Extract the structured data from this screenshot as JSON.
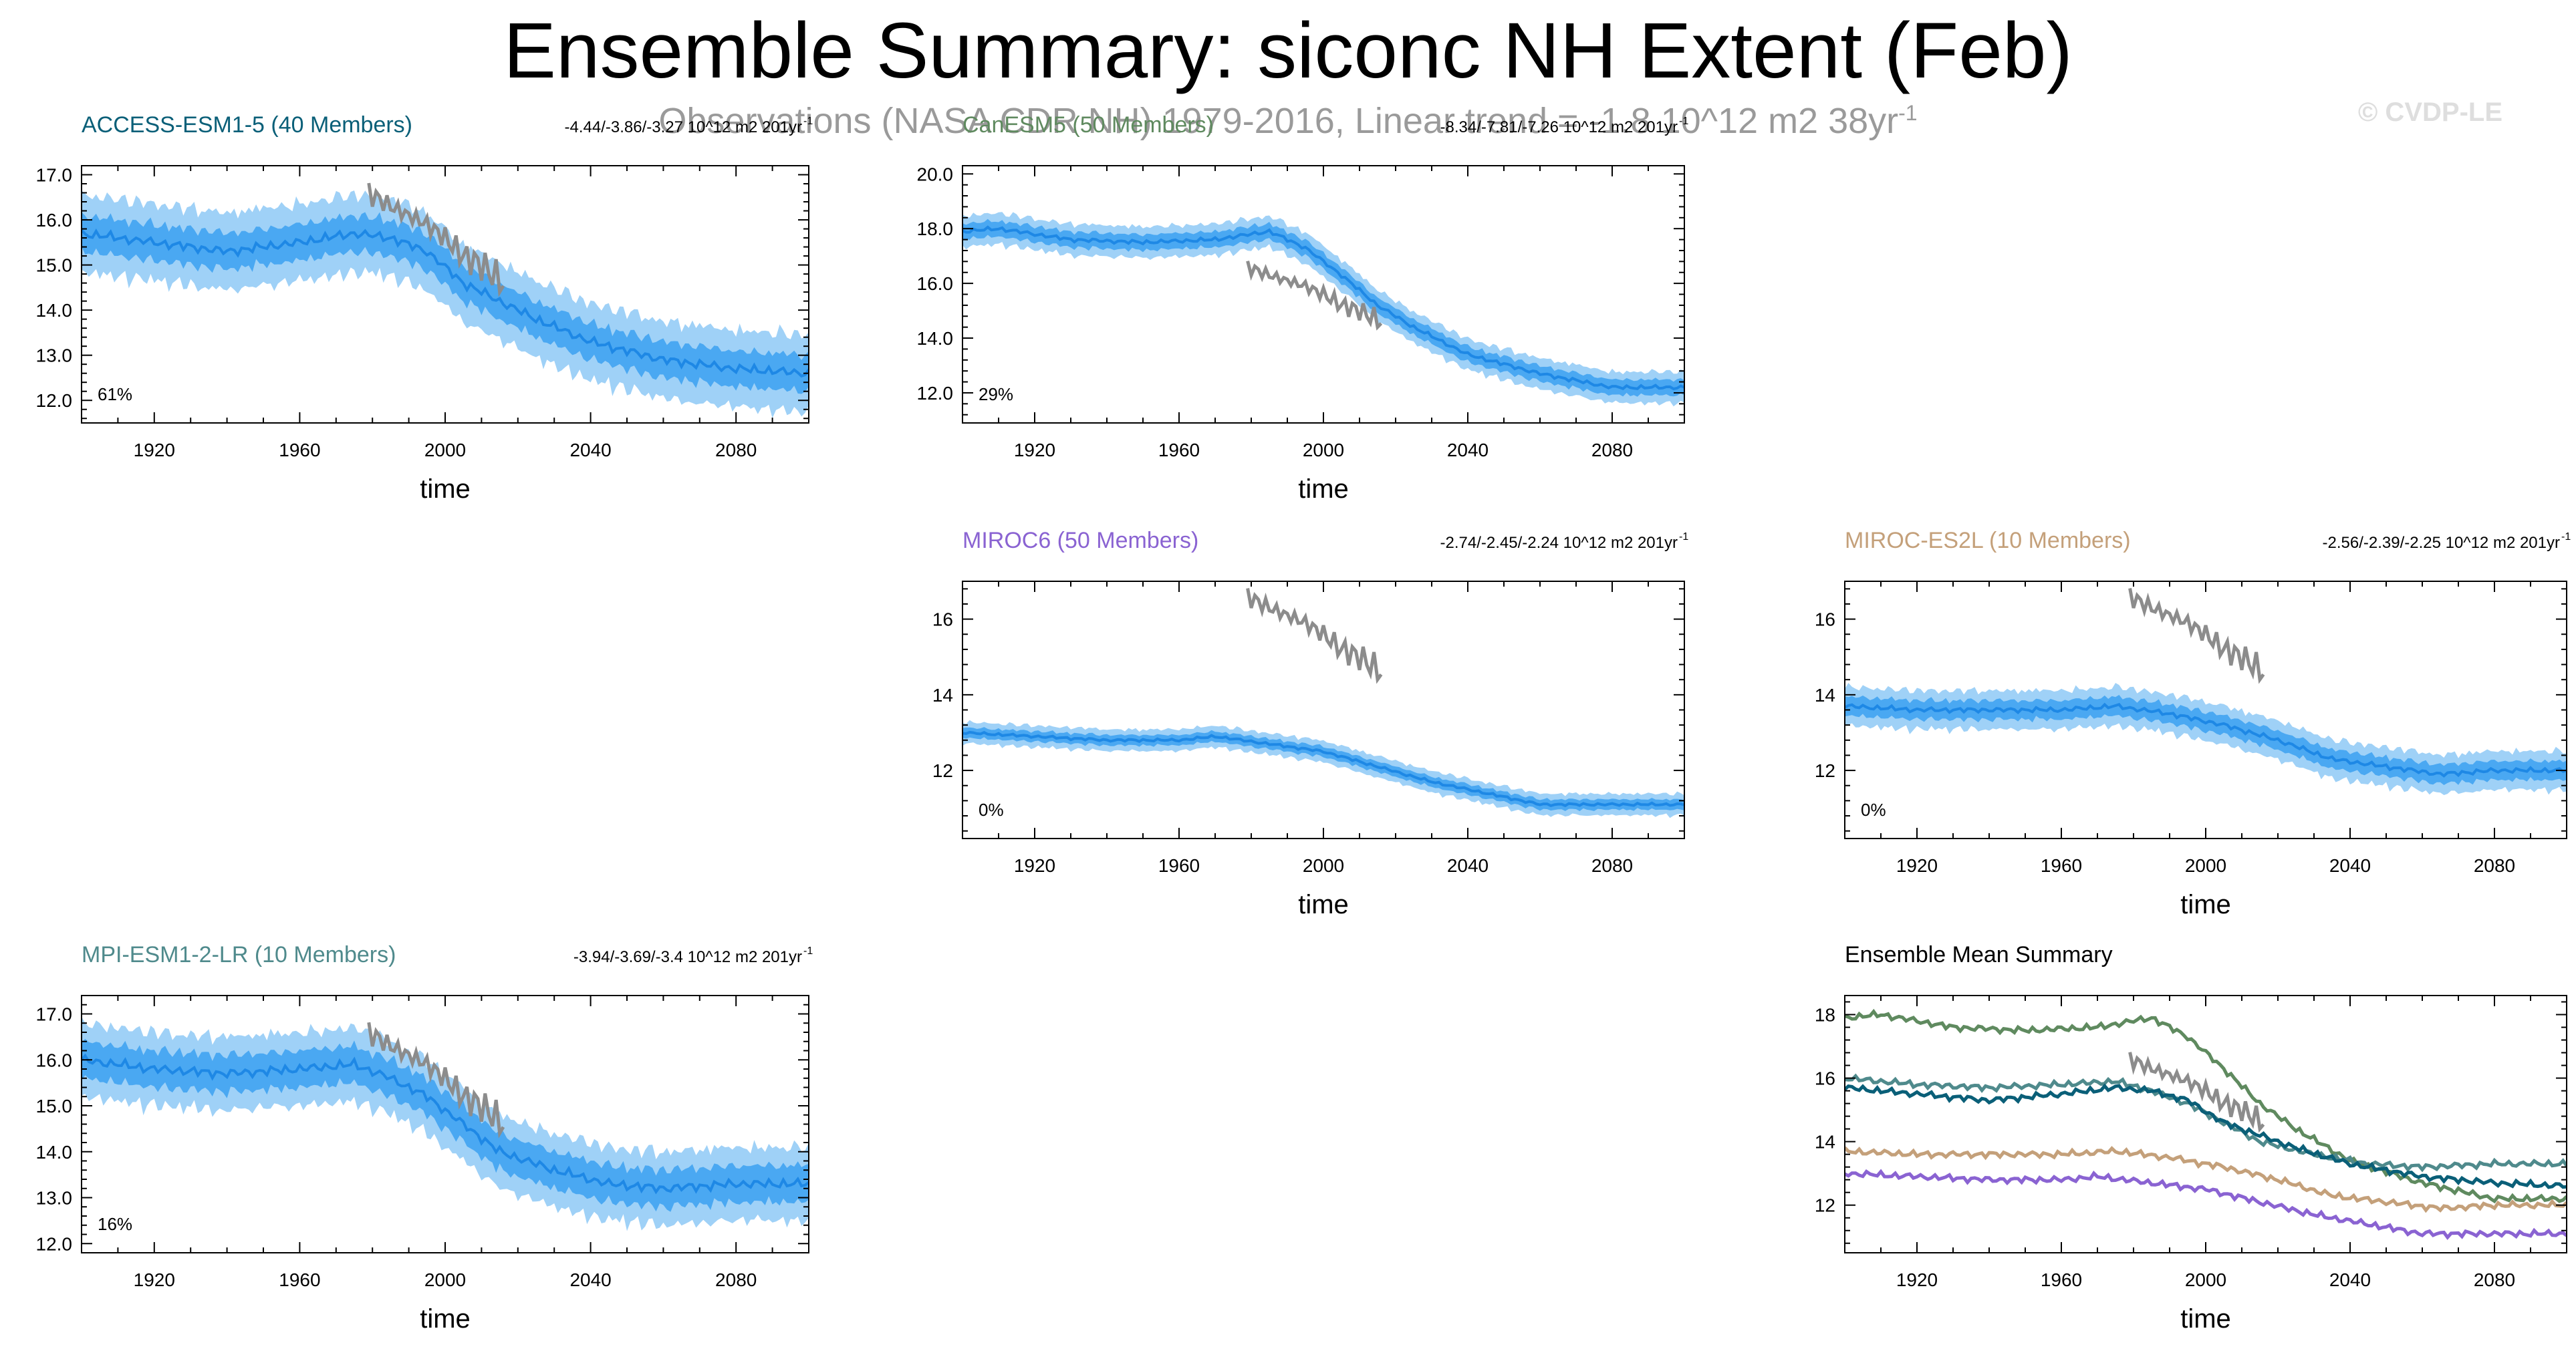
{
  "title": "Ensemble Summary: siconc NH Extent (Feb)",
  "subtitle_text": "Observations (NASA CDR NH) 1979-2016, Linear trend = -1.8 10^12 m2 38yr",
  "subtitle_sup": "-1",
  "watermark": "© CVDP-LE",
  "colors": {
    "ensemble_range": "#9fd1f7",
    "ensemble_iqr": "#4aa8f2",
    "ensemble_mean": "#1e88e5",
    "observations": "#8c8c8c"
  },
  "chart_data": [
    {
      "id": "access",
      "type": "area",
      "title": "ACCESS-ESM1-5 (40 Members)",
      "title_color": "#0a5f78",
      "trend_text": "-4.44/-3.86/-3.27 10^12 m2 201yr",
      "trend_sup": "-1",
      "pct_label": "61%",
      "xlabel": "time",
      "xlim": [
        1900,
        2100
      ],
      "ylim": [
        11.5,
        17.2
      ],
      "xticks": [
        1920,
        1960,
        2000,
        2040,
        2080
      ],
      "yticks": [
        12.0,
        13.0,
        14.0,
        15.0,
        16.0,
        17.0
      ],
      "ytick_labels": [
        "12.0",
        "13.0",
        "14.0",
        "15.0",
        "16.0",
        "17.0"
      ],
      "ensemble_mean": {
        "x": [
          1900,
          1920,
          1940,
          1960,
          1975,
          1985,
          1995,
          2005,
          2015,
          2025,
          2040,
          2060,
          2080,
          2100
        ],
        "y": [
          15.7,
          15.5,
          15.3,
          15.5,
          15.7,
          15.6,
          15.3,
          14.6,
          14.2,
          13.8,
          13.3,
          12.9,
          12.7,
          12.6
        ]
      },
      "spread_inner": 0.35,
      "spread_outer": 0.75,
      "observations": {
        "x": [
          1979,
          1985,
          1990,
          1995,
          2000,
          2005,
          2010,
          2016
        ],
        "y": [
          16.6,
          16.3,
          16.1,
          15.9,
          15.6,
          15.2,
          15.0,
          14.6
        ]
      }
    },
    {
      "id": "canesm5",
      "type": "area",
      "title": "CanESM5 (50 Members)",
      "title_color": "#5f8a5f",
      "trend_text": "-8.34/-7.81/-7.26 10^12 m2 201yr",
      "trend_sup": "-1",
      "pct_label": "29%",
      "xlabel": "time",
      "xlim": [
        1900,
        2100
      ],
      "ylim": [
        10.9,
        20.3
      ],
      "xticks": [
        1920,
        1960,
        2000,
        2040,
        2080
      ],
      "yticks": [
        12.0,
        14.0,
        16.0,
        18.0,
        20.0
      ],
      "ytick_labels": [
        "12.0",
        "14.0",
        "16.0",
        "18.0",
        "20.0"
      ],
      "ensemble_mean": {
        "x": [
          1900,
          1910,
          1930,
          1950,
          1970,
          1985,
          1995,
          2005,
          2015,
          2025,
          2040,
          2060,
          2080,
          2100
        ],
        "y": [
          17.9,
          18.0,
          17.6,
          17.5,
          17.6,
          17.9,
          17.3,
          16.3,
          15.2,
          14.4,
          13.4,
          12.7,
          12.2,
          12.2
        ]
      },
      "spread_inner": 0.25,
      "spread_outer": 0.5,
      "observations": {
        "x": [
          1979,
          1985,
          1990,
          1995,
          2000,
          2005,
          2010,
          2016
        ],
        "y": [
          16.6,
          16.3,
          16.1,
          15.9,
          15.6,
          15.2,
          15.0,
          14.6
        ]
      }
    },
    {
      "id": "miroc6",
      "type": "area",
      "title": "MIROC6 (50 Members)",
      "title_color": "#8a63d2",
      "trend_text": "-2.74/-2.45/-2.24 10^12 m2 201yr",
      "trend_sup": "-1",
      "pct_label": "0%",
      "xlabel": "time",
      "xlim": [
        1900,
        2100
      ],
      "ylim": [
        10.2,
        17.0
      ],
      "xticks": [
        1920,
        1960,
        2000,
        2040,
        2080
      ],
      "yticks": [
        12,
        14,
        16
      ],
      "ytick_labels": [
        "12",
        "14",
        "16"
      ],
      "ensemble_mean": {
        "x": [
          1900,
          1920,
          1940,
          1960,
          1970,
          1985,
          2000,
          2015,
          2030,
          2045,
          2060,
          2080,
          2100
        ],
        "y": [
          13.0,
          12.9,
          12.8,
          12.8,
          12.9,
          12.7,
          12.5,
          12.1,
          11.7,
          11.4,
          11.1,
          11.1,
          11.1
        ]
      },
      "spread_inner": 0.12,
      "spread_outer": 0.25,
      "observations": {
        "x": [
          1979,
          1985,
          1990,
          1995,
          2000,
          2005,
          2010,
          2016
        ],
        "y": [
          16.6,
          16.3,
          16.1,
          15.9,
          15.6,
          15.2,
          15.0,
          14.6
        ]
      }
    },
    {
      "id": "miroces2l",
      "type": "area",
      "title": "MIROC-ES2L (10 Members)",
      "title_color": "#c4a07a",
      "trend_text": "-2.56/-2.39/-2.25 10^12 m2 201yr",
      "trend_sup": "-1",
      "pct_label": "0%",
      "xlabel": "time",
      "xlim": [
        1900,
        2100
      ],
      "ylim": [
        10.2,
        17.0
      ],
      "xticks": [
        1920,
        1960,
        2000,
        2040,
        2080
      ],
      "yticks": [
        12,
        14,
        16
      ],
      "ytick_labels": [
        "12",
        "14",
        "16"
      ],
      "ensemble_mean": {
        "x": [
          1900,
          1920,
          1940,
          1960,
          1975,
          1990,
          2005,
          2020,
          2035,
          2050,
          2065,
          2080,
          2100
        ],
        "y": [
          13.7,
          13.6,
          13.6,
          13.6,
          13.7,
          13.5,
          13.2,
          12.8,
          12.3,
          12.1,
          11.9,
          12.0,
          12.0
        ]
      },
      "spread_inner": 0.22,
      "spread_outer": 0.45,
      "observations": {
        "x": [
          1979,
          1985,
          1990,
          1995,
          2000,
          2005,
          2010,
          2016
        ],
        "y": [
          16.6,
          16.3,
          16.1,
          15.9,
          15.6,
          15.2,
          15.0,
          14.6
        ]
      }
    },
    {
      "id": "mpi",
      "type": "area",
      "title": "MPI-ESM1-2-LR (10 Members)",
      "title_color": "#4f8a8c",
      "trend_text": "-3.94/-3.69/-3.4 10^12 m2 201yr",
      "trend_sup": "-1",
      "pct_label": "16%",
      "xlabel": "time",
      "xlim": [
        1900,
        2100
      ],
      "ylim": [
        11.8,
        17.4
      ],
      "xticks": [
        1920,
        1960,
        2000,
        2040,
        2080
      ],
      "yticks": [
        12.0,
        13.0,
        14.0,
        15.0,
        16.0,
        17.0
      ],
      "ytick_labels": [
        "12.0",
        "13.0",
        "14.0",
        "15.0",
        "16.0",
        "17.0"
      ],
      "ensemble_mean": {
        "x": [
          1900,
          1920,
          1940,
          1960,
          1975,
          1985,
          1995,
          2005,
          2015,
          2030,
          2045,
          2060,
          2080,
          2100
        ],
        "y": [
          16.0,
          15.8,
          15.7,
          15.8,
          15.9,
          15.6,
          15.2,
          14.6,
          14.0,
          13.6,
          13.3,
          13.2,
          13.3,
          13.3
        ]
      },
      "spread_inner": 0.35,
      "spread_outer": 0.7,
      "observations": {
        "x": [
          1979,
          1985,
          1990,
          1995,
          2000,
          2005,
          2010,
          2016
        ],
        "y": [
          16.6,
          16.3,
          16.1,
          15.9,
          15.6,
          15.2,
          15.0,
          14.6
        ]
      }
    },
    {
      "id": "summary",
      "type": "line",
      "title": "Ensemble Mean Summary",
      "title_color": "#000000",
      "xlabel": "time",
      "xlim": [
        1900,
        2100
      ],
      "ylim": [
        10.5,
        18.6
      ],
      "xticks": [
        1920,
        1960,
        2000,
        2040,
        2080
      ],
      "yticks": [
        12,
        14,
        16,
        18
      ],
      "ytick_labels": [
        "12",
        "14",
        "16",
        "18"
      ],
      "series": [
        {
          "color": "#5f8a5f",
          "x": [
            1900,
            1910,
            1930,
            1950,
            1970,
            1985,
            1995,
            2005,
            2015,
            2025,
            2040,
            2060,
            2080,
            2100
          ],
          "y": [
            17.9,
            18.0,
            17.6,
            17.5,
            17.6,
            17.9,
            17.3,
            16.3,
            15.2,
            14.4,
            13.4,
            12.7,
            12.2,
            12.2
          ]
        },
        {
          "color": "#4f8a8c",
          "x": [
            1900,
            1920,
            1940,
            1960,
            1975,
            1985,
            1995,
            2005,
            2015,
            2030,
            2045,
            2060,
            2080,
            2100
          ],
          "y": [
            16.0,
            15.8,
            15.7,
            15.8,
            15.9,
            15.6,
            15.2,
            14.6,
            14.0,
            13.6,
            13.3,
            13.2,
            13.3,
            13.3
          ]
        },
        {
          "color": "#0a5f78",
          "x": [
            1900,
            1920,
            1940,
            1960,
            1975,
            1985,
            1995,
            2005,
            2015,
            2025,
            2040,
            2060,
            2080,
            2100
          ],
          "y": [
            15.7,
            15.5,
            15.3,
            15.5,
            15.7,
            15.6,
            15.3,
            14.6,
            14.2,
            13.8,
            13.3,
            12.9,
            12.7,
            12.6
          ]
        },
        {
          "color": "#c4a07a",
          "x": [
            1900,
            1920,
            1940,
            1960,
            1975,
            1990,
            2005,
            2020,
            2035,
            2050,
            2065,
            2080,
            2100
          ],
          "y": [
            13.7,
            13.6,
            13.6,
            13.6,
            13.7,
            13.5,
            13.2,
            12.8,
            12.3,
            12.1,
            11.9,
            12.0,
            12.0
          ]
        },
        {
          "color": "#8a63d2",
          "x": [
            1900,
            1920,
            1940,
            1960,
            1970,
            1985,
            2000,
            2015,
            2030,
            2045,
            2060,
            2080,
            2100
          ],
          "y": [
            13.0,
            12.9,
            12.8,
            12.8,
            12.9,
            12.7,
            12.5,
            12.1,
            11.7,
            11.4,
            11.1,
            11.1,
            11.1
          ]
        }
      ],
      "observations": {
        "x": [
          1979,
          1985,
          1990,
          1995,
          2000,
          2005,
          2010,
          2016
        ],
        "y": [
          16.6,
          16.3,
          16.1,
          15.9,
          15.6,
          15.2,
          15.0,
          14.6
        ]
      }
    }
  ]
}
